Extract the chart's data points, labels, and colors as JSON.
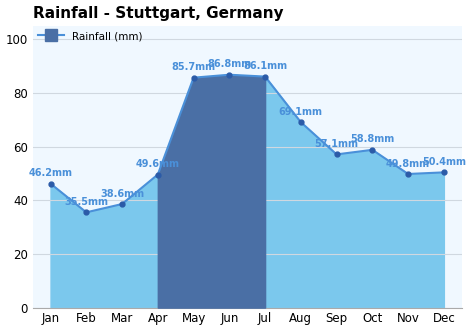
{
  "title": "Rainfall - Stuttgart, Germany",
  "legend_label": "Rainfall (mm)",
  "months": [
    "Jan",
    "Feb",
    "Mar",
    "Apr",
    "May",
    "Jun",
    "Jul",
    "Aug",
    "Sep",
    "Oct",
    "Nov",
    "Dec"
  ],
  "values": [
    46.2,
    35.5,
    38.6,
    49.6,
    85.7,
    86.8,
    86.1,
    69.1,
    57.1,
    58.8,
    49.8,
    50.4
  ],
  "labels": [
    "46.2mm",
    "35.5mm",
    "38.6mm",
    "49.6mm",
    "85.7mm",
    "86.8mm",
    "86.1mm",
    "69.1mm",
    "57.1mm",
    "58.8mm",
    "49.8mm",
    "50.4mm"
  ],
  "ylim": [
    0,
    105
  ],
  "yticks": [
    0,
    20,
    40,
    60,
    80,
    100
  ],
  "fill_color_light": "#7BC8ED",
  "fill_color_dark": "#4A6FA5",
  "line_color": "#4A90D9",
  "marker_color": "#2B5BA8",
  "label_color": "#4A90D9",
  "dark_months_idx": [
    3,
    4,
    5,
    6
  ],
  "background_color": "#ffffff",
  "plot_bg_color": "#f0f8ff",
  "grid_color": "#d0d8e0",
  "title_fontsize": 11,
  "label_fontsize": 7,
  "tick_fontsize": 8.5
}
